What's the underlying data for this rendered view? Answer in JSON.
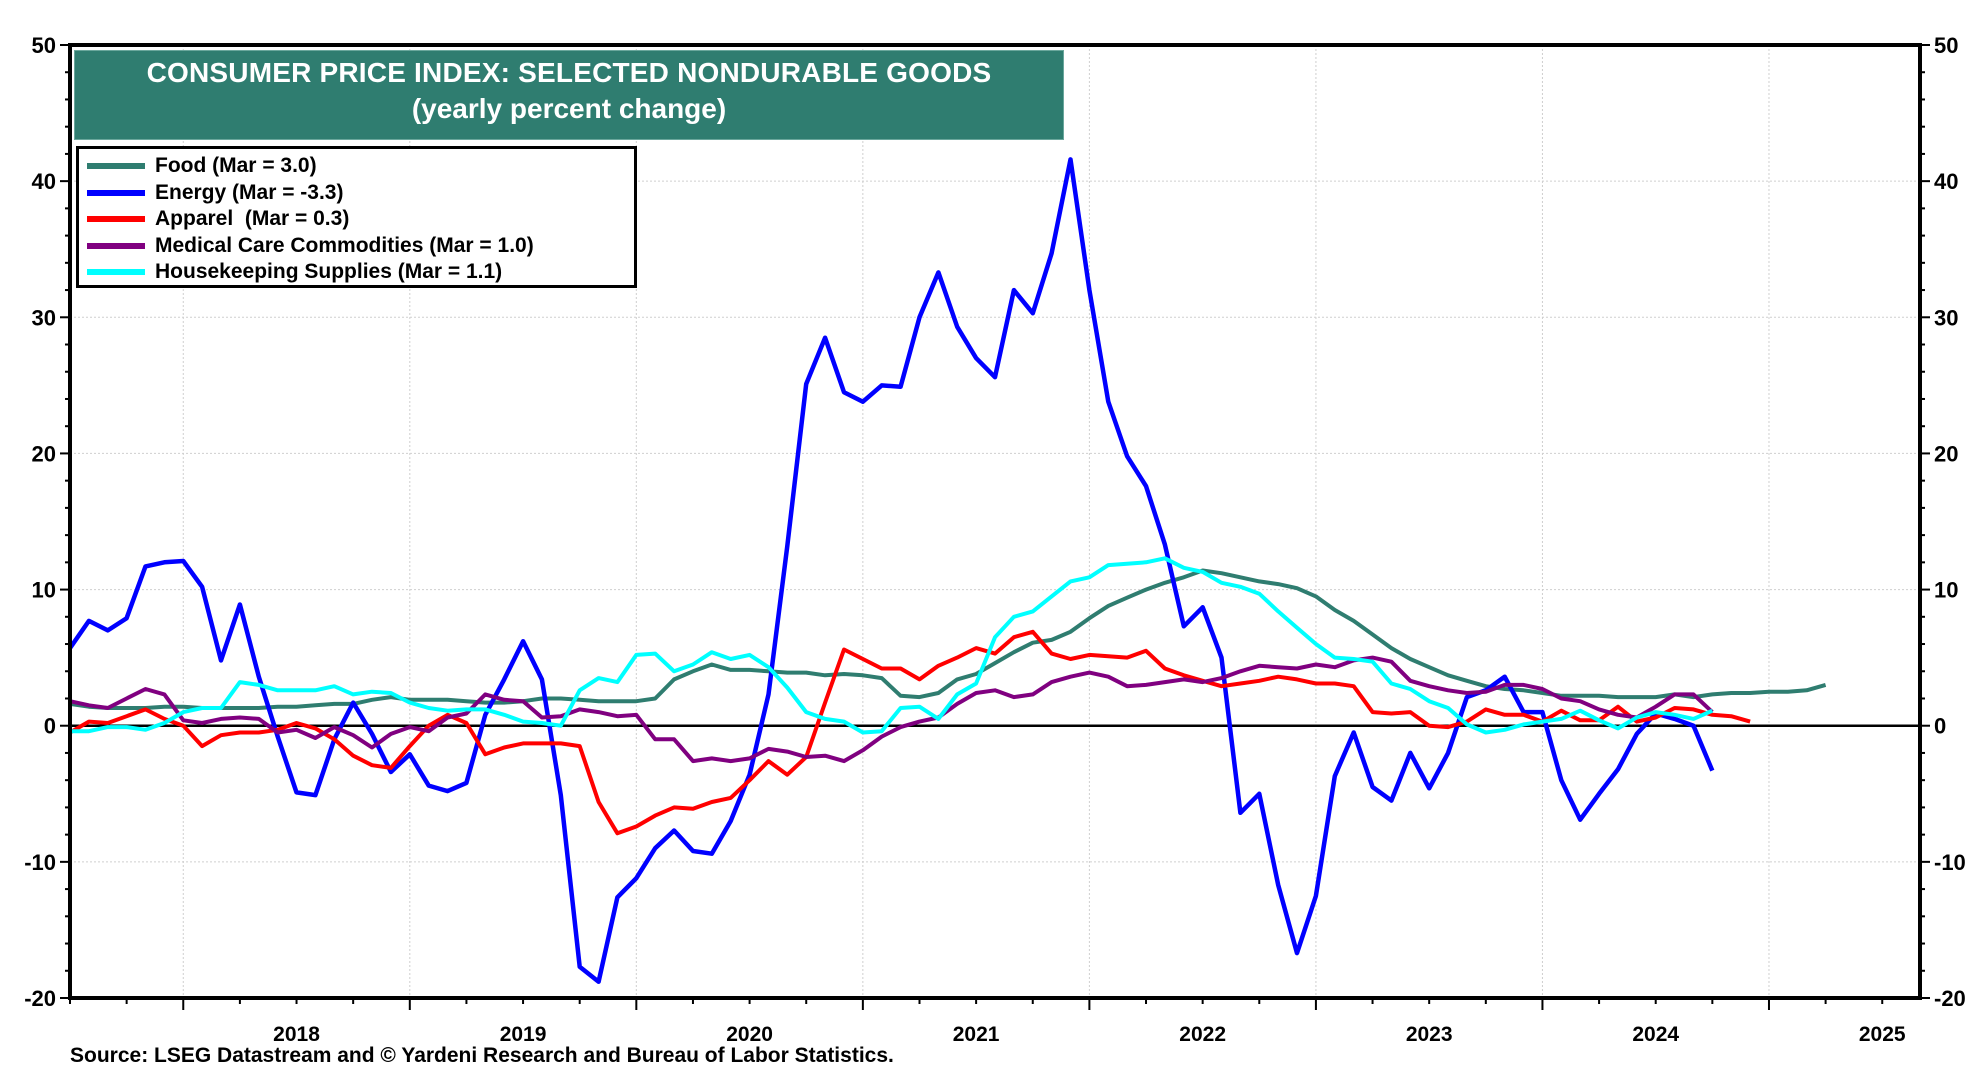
{
  "chart_data": {
    "type": "line",
    "title": "CONSUMER PRICE INDEX: SELECTED NONDURABLE GOODS",
    "subtitle": "(yearly percent change)",
    "xlabel": "",
    "ylabel": "",
    "ylim": [
      -20,
      50
    ],
    "yticks": [
      50,
      40,
      30,
      20,
      10,
      0,
      -10,
      -20
    ],
    "ytick_labels": [
      "50",
      "40",
      "30",
      "20",
      "10",
      "0",
      "-10",
      "-20"
    ],
    "x_start": "2017-07",
    "x_end_axis": "2025-09",
    "x_frequency": "monthly",
    "year_labels": [
      "2018",
      "2019",
      "2020",
      "2021",
      "2022",
      "2023",
      "2024",
      "2025"
    ],
    "grid": true,
    "legend_position": "top-left",
    "source": "Source: LSEG Datastream and © Yardeni Research and Bureau of Labor Statistics.",
    "series": [
      {
        "name": "Food",
        "legend": "Food (Mar = 3.0)",
        "color": "#2f7d70",
        "values": [
          1.6,
          1.4,
          1.3,
          1.3,
          1.3,
          1.4,
          1.4,
          1.3,
          1.3,
          1.3,
          1.3,
          1.4,
          1.4,
          1.5,
          1.6,
          1.6,
          1.9,
          2.1,
          1.9,
          1.9,
          1.9,
          1.8,
          1.7,
          1.7,
          1.8,
          2.0,
          2.0,
          1.9,
          1.8,
          1.8,
          1.8,
          2.0,
          3.4,
          4.0,
          4.5,
          4.1,
          4.1,
          4.0,
          3.9,
          3.9,
          3.7,
          3.8,
          3.7,
          3.5,
          2.2,
          2.1,
          2.4,
          3.4,
          3.8,
          4.6,
          5.4,
          6.1,
          6.3,
          6.9,
          7.9,
          8.8,
          9.4,
          10.0,
          10.5,
          10.9,
          11.4,
          11.2,
          10.9,
          10.6,
          10.4,
          10.1,
          9.5,
          8.5,
          7.7,
          6.7,
          5.7,
          4.9,
          4.3,
          3.7,
          3.3,
          2.9,
          2.7,
          2.6,
          2.4,
          2.2,
          2.2,
          2.2,
          2.1,
          2.1,
          2.1,
          2.3,
          2.1,
          2.3,
          2.4,
          2.4,
          2.5,
          2.5,
          2.6,
          3.0
        ]
      },
      {
        "name": "Energy",
        "legend": "Energy (Mar = -3.3)",
        "color": "#0000ff",
        "values": [
          5.7,
          7.7,
          7.0,
          7.9,
          11.7,
          12.0,
          12.1,
          10.2,
          4.8,
          8.9,
          3.6,
          -0.8,
          -4.9,
          -5.1,
          -1.0,
          1.7,
          -0.6,
          -3.4,
          -2.1,
          -4.4,
          -4.8,
          -4.2,
          0.8,
          3.4,
          6.2,
          3.4,
          -5.1,
          -17.7,
          -18.8,
          -12.6,
          -11.2,
          -9.0,
          -7.7,
          -9.2,
          -9.4,
          -7.0,
          -3.6,
          2.3,
          13.2,
          25.1,
          28.5,
          24.5,
          23.8,
          25.0,
          24.9,
          30.0,
          33.3,
          29.3,
          27.0,
          25.6,
          32.0,
          30.3,
          34.7,
          41.6,
          32.0,
          23.8,
          19.8,
          17.6,
          13.3,
          7.3,
          8.7,
          5.0,
          -6.4,
          -5.0,
          -11.7,
          -16.7,
          -12.5,
          -3.7,
          -0.5,
          -4.5,
          -5.5,
          -2.0,
          -4.6,
          -2.0,
          2.1,
          2.6,
          3.6,
          1.0,
          1.0,
          -4.0,
          -6.9,
          -5.0,
          -3.2,
          -0.6,
          0.9,
          0.5,
          0.0,
          -3.3
        ]
      },
      {
        "name": "Apparel",
        "legend": "Apparel  (Mar = 0.3)",
        "color": "#ff0000",
        "values": [
          -0.5,
          0.3,
          0.2,
          0.7,
          1.2,
          0.5,
          0.0,
          -1.5,
          -0.7,
          -0.5,
          -0.5,
          -0.3,
          0.2,
          -0.2,
          -1.0,
          -2.2,
          -2.9,
          -3.1,
          -1.5,
          0.0,
          0.8,
          0.2,
          -2.1,
          -1.6,
          -1.3,
          -1.3,
          -1.3,
          -1.5,
          -5.6,
          -7.9,
          -7.4,
          -6.6,
          -6.0,
          -6.1,
          -5.6,
          -5.3,
          -4.0,
          -2.6,
          -3.6,
          -2.3,
          1.7,
          5.6,
          4.9,
          4.2,
          4.2,
          3.4,
          4.4,
          5.0,
          5.7,
          5.3,
          6.5,
          6.9,
          5.3,
          4.9,
          5.2,
          5.1,
          5.0,
          5.5,
          4.2,
          3.7,
          3.3,
          2.9,
          3.1,
          3.3,
          3.6,
          3.4,
          3.1,
          3.1,
          2.9,
          1.0,
          0.9,
          1.0,
          0.0,
          -0.1,
          0.3,
          1.2,
          0.8,
          0.8,
          0.3,
          1.1,
          0.4,
          0.4,
          1.4,
          0.3,
          0.6,
          1.3,
          1.2,
          0.8,
          0.7,
          0.3
        ]
      },
      {
        "name": "Medical Care Commodities",
        "legend": "Medical Care Commodities (Mar = 1.0)",
        "color": "#800080",
        "values": [
          1.8,
          1.5,
          1.3,
          2.0,
          2.7,
          2.3,
          0.4,
          0.2,
          0.5,
          0.6,
          0.5,
          -0.5,
          -0.3,
          -0.9,
          -0.1,
          -0.7,
          -1.6,
          -0.6,
          -0.1,
          -0.4,
          0.6,
          0.9,
          2.3,
          1.9,
          1.8,
          0.6,
          0.7,
          1.2,
          1.0,
          0.7,
          0.8,
          -1.0,
          -1.0,
          -2.6,
          -2.4,
          -2.6,
          -2.4,
          -1.7,
          -1.9,
          -2.3,
          -2.2,
          -2.6,
          -1.8,
          -0.8,
          -0.1,
          0.3,
          0.6,
          1.6,
          2.4,
          2.6,
          2.1,
          2.3,
          3.2,
          3.6,
          3.9,
          3.6,
          2.9,
          3.0,
          3.2,
          3.4,
          3.2,
          3.5,
          4.0,
          4.4,
          4.3,
          4.2,
          4.5,
          4.3,
          4.8,
          5.0,
          4.7,
          3.3,
          2.9,
          2.6,
          2.4,
          2.5,
          3.0,
          3.0,
          2.7,
          2.0,
          1.8,
          1.2,
          0.8,
          0.6,
          1.4,
          2.3,
          2.3,
          1.0
        ]
      },
      {
        "name": "Housekeeping Supplies",
        "legend": "Housekeeping Supplies (Mar = 1.1)",
        "color": "#00ffff",
        "values": [
          -0.4,
          -0.4,
          -0.1,
          -0.1,
          -0.3,
          0.2,
          1.0,
          1.3,
          1.3,
          3.2,
          3.0,
          2.6,
          2.6,
          2.6,
          2.9,
          2.3,
          2.5,
          2.4,
          1.7,
          1.3,
          1.1,
          1.2,
          1.2,
          0.8,
          0.3,
          0.2,
          0.0,
          2.6,
          3.5,
          3.2,
          5.2,
          5.3,
          4.0,
          4.5,
          5.4,
          4.9,
          5.2,
          4.3,
          2.8,
          1.0,
          0.5,
          0.3,
          -0.5,
          -0.4,
          1.3,
          1.4,
          0.5,
          2.3,
          3.1,
          6.5,
          8.0,
          8.4,
          9.5,
          10.6,
          10.9,
          11.8,
          11.9,
          12.0,
          12.3,
          11.6,
          11.3,
          10.5,
          10.2,
          9.7,
          8.4,
          7.2,
          6.0,
          5.0,
          4.9,
          4.7,
          3.1,
          2.7,
          1.8,
          1.3,
          0.1,
          -0.5,
          -0.3,
          0.1,
          0.3,
          0.5,
          1.1,
          0.4,
          -0.2,
          0.6,
          1.0,
          0.8,
          0.5,
          1.1
        ]
      }
    ]
  }
}
